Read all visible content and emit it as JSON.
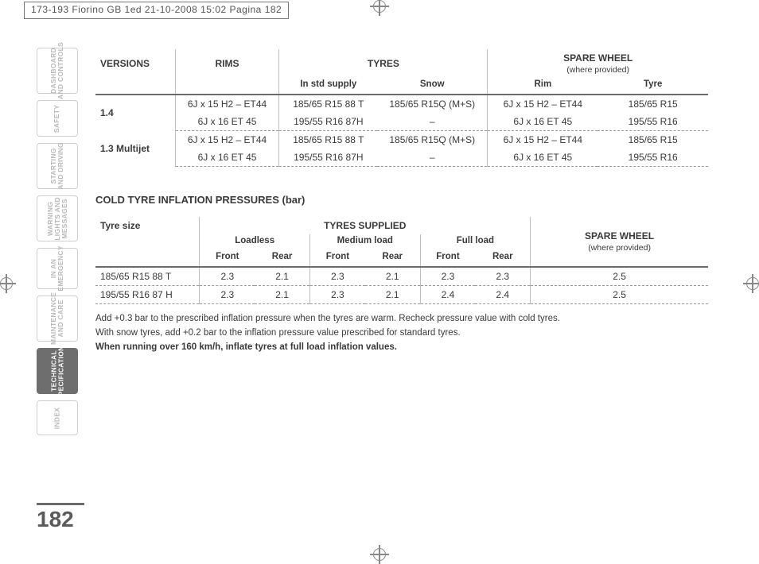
{
  "slug": "173-193 Fiorino GB 1ed  21-10-2008  15:02  Pagina 182",
  "page_number": "182",
  "colors": {
    "text": "#3a3a3a",
    "muted": "#b9b9b9",
    "rule": "#6b6b6b",
    "dash": "#9a9a9a",
    "sep": "#bfbfbf",
    "tab_active_bg": "#6e6e6e",
    "tab_active_fg": "#ffffff",
    "background": "#ffffff"
  },
  "typography": {
    "base_font": "Arial/Helvetica",
    "base_size_pt": 9,
    "header_size_pt": 10,
    "pgnum_size_pt": 21,
    "weights": {
      "normal": 400,
      "bold": 700,
      "pgnum": 800
    }
  },
  "tabs": [
    {
      "label": "DASHBOARD\nAND CONTROLS",
      "height": 58,
      "active": false
    },
    {
      "label": "SAFETY",
      "height": 46,
      "active": false
    },
    {
      "label": "STARTING\nAND DRIVING",
      "height": 58,
      "active": false
    },
    {
      "label": "WARNING\nLIGHTS AND\nMESSAGES",
      "height": 58,
      "active": false
    },
    {
      "label": "IN AN\nEMERGENCY",
      "height": 52,
      "active": false
    },
    {
      "label": "MAINTENANCE\nAND CARE",
      "height": 58,
      "active": false
    },
    {
      "label": "TECHNICAL\nSPECIFICATIONS",
      "height": 58,
      "active": true
    },
    {
      "label": "INDEX",
      "height": 44,
      "active": false
    }
  ],
  "table1": {
    "headers": {
      "versions": "VERSIONS",
      "rims": "RIMS",
      "tyres": "TYRES",
      "spare": "SPARE WHEEL",
      "spare_sub": "(where provided)",
      "in_std": "In std supply",
      "snow": "Snow",
      "rim": "Rim",
      "tyre": "Tyre"
    },
    "groups": [
      {
        "version": "1.4",
        "rows": [
          {
            "rims": "6J x 15 H2 – ET44",
            "std": "185/65 R15 88 T",
            "snow": "185/65 R15Q (M+S)",
            "rim": "6J x 15 H2 – ET44",
            "tyre": "185/65 R15"
          },
          {
            "rims": "6J x 16 ET 45",
            "std": "195/55 R16 87H",
            "snow": "–",
            "rim": "6J x 16 ET 45",
            "tyre": "195/55 R16"
          }
        ]
      },
      {
        "version": "1.3 Multijet",
        "rows": [
          {
            "rims": "6J x 15 H2 – ET44",
            "std": "185/65 R15 88 T",
            "snow": "185/65 R15Q (M+S)",
            "rim": "6J x 15 H2 – ET44",
            "tyre": "185/65 R15"
          },
          {
            "rims": "6J x 16 ET 45",
            "std": "195/55 R16 87H",
            "snow": "–",
            "rim": "6J x 16 ET 45",
            "tyre": "195/55 R16"
          }
        ]
      }
    ]
  },
  "section2_title": "COLD TYRE INFLATION PRESSURES (bar)",
  "table2": {
    "headers": {
      "tyre_size": "Tyre size",
      "supplied": "TYRES SUPPLIED",
      "spare": "SPARE WHEEL",
      "spare_sub": "(where provided)",
      "loadless": "Loadless",
      "medium": "Medium load",
      "full": "Full load",
      "front": "Front",
      "rear": "Rear"
    },
    "col_widths_pct": [
      17,
      9,
      9,
      9,
      9,
      9,
      9,
      29
    ],
    "rows": [
      {
        "size": "185/65 R15 88 T",
        "ll_f": "2.3",
        "ll_r": "2.1",
        "ml_f": "2.3",
        "ml_r": "2.1",
        "fl_f": "2.3",
        "fl_r": "2.3",
        "spare": "2.5"
      },
      {
        "size": "195/55 R16 87 H",
        "ll_f": "2.3",
        "ll_r": "2.1",
        "ml_f": "2.3",
        "ml_r": "2.1",
        "fl_f": "2.4",
        "fl_r": "2.4",
        "spare": "2.5"
      }
    ]
  },
  "notes": {
    "n1": "Add +0.3 bar to the prescribed inflation pressure when the tyres are warm. Recheck pressure value with cold tyres.",
    "n2": "With snow tyres, add +0.2 bar to the inflation pressure value prescribed for standard tyres.",
    "n3": "When running over 160 km/h, inflate tyres at full load inflation values."
  }
}
